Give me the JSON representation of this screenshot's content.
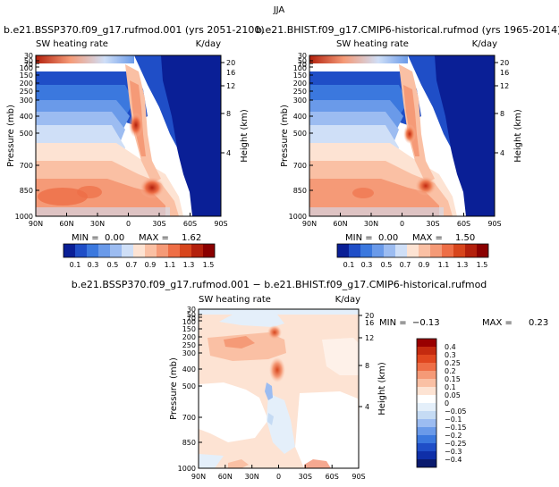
{
  "page_title": "JJA",
  "colors": {
    "lightblue": "#e4effa",
    "lightred": "#fde3d3",
    "midred": "#fac0a4",
    "orange": "#ee6e46",
    "darkorange": "#d7451c",
    "darkred": "#990000"
  },
  "chart_data": [
    {
      "type": "heatmap",
      "title": "b.e21.BSSP370.f09_g17.rufmod.001 (yrs 2051-2100)",
      "field_label": "SW heating rate",
      "units": "K/day",
      "ylabel": "Pressure (mb)",
      "ylabel_right": "Height (km)",
      "x_ticks": [
        "90N",
        "60N",
        "30N",
        "0",
        "30S",
        "60S",
        "90S"
      ],
      "y_ticks": [
        "30",
        "50",
        "70",
        "100",
        "150",
        "200",
        "250",
        "300",
        "400",
        "500",
        "700",
        "850",
        "1000"
      ],
      "height_ticks": [
        "20",
        "16",
        "12",
        "8",
        "4"
      ],
      "min_label": "MIN =",
      "min_value": "0.00",
      "max_label": "MAX =",
      "max_value": "1.62",
      "xlim": [
        90,
        -90
      ],
      "ylim": [
        1000,
        30
      ]
    },
    {
      "type": "heatmap",
      "title": "b.e21.BHIST.f09_g17.CMIP6-historical.rufmod (yrs 1965-2014)",
      "field_label": "SW heating rate",
      "units": "K/day",
      "ylabel": "Pressure (mb)",
      "ylabel_right": "Height (km)",
      "x_ticks": [
        "90N",
        "60N",
        "30N",
        "0",
        "30S",
        "60S",
        "90S"
      ],
      "y_ticks": [
        "30",
        "50",
        "70",
        "100",
        "150",
        "200",
        "250",
        "300",
        "400",
        "500",
        "700",
        "850",
        "1000"
      ],
      "height_ticks": [
        "20",
        "16",
        "12",
        "8",
        "4"
      ],
      "min_label": "MIN =",
      "min_value": "0.00",
      "max_label": "MAX =",
      "max_value": "1.50",
      "xlim": [
        90,
        -90
      ],
      "ylim": [
        1000,
        30
      ]
    },
    {
      "type": "heatmap",
      "title": "b.e21.BSSP370.f09_g17.rufmod.001 − b.e21.BHIST.f09_g17.CMIP6-historical.rufmod",
      "field_label": "SW heating rate",
      "units": "K/day",
      "ylabel": "Pressure (mb)",
      "ylabel_right": "Height (km)",
      "x_ticks": [
        "90N",
        "60N",
        "30N",
        "0",
        "30S",
        "60S",
        "90S"
      ],
      "y_ticks": [
        "30",
        "50",
        "70",
        "100",
        "150",
        "200",
        "250",
        "300",
        "400",
        "500",
        "700",
        "850",
        "1000"
      ],
      "height_ticks": [
        "20",
        "16",
        "12",
        "8",
        "4"
      ],
      "min_label": "MIN =",
      "min_value": "−0.13",
      "max_label": "MAX =",
      "max_value": "0.23",
      "xlim": [
        90,
        -90
      ],
      "ylim": [
        1000,
        30
      ]
    }
  ],
  "colorbar_main": {
    "labels": [
      "0.1",
      "0.3",
      "0.5",
      "0.7",
      "0.9",
      "1.1",
      "1.3",
      "1.5"
    ],
    "colors": [
      "#0a1f96",
      "#1f4ec7",
      "#3b78de",
      "#6a9ae9",
      "#9cbcf1",
      "#cfdff7",
      "#fde3d3",
      "#fac0a4",
      "#f59a77",
      "#ee6e46",
      "#d7451c",
      "#b3200c",
      "#8a0000"
    ]
  },
  "colorbar_diff": {
    "labels": [
      "0.4",
      "0.3",
      "0.25",
      "0.2",
      "0.15",
      "0.1",
      "0.05",
      "0",
      "−0.05",
      "−0.1",
      "−0.15",
      "−0.2",
      "−0.25",
      "−0.3",
      "−0.4"
    ],
    "colors": [
      "#990000",
      "#c42a0f",
      "#e0471f",
      "#ee6e46",
      "#f59a77",
      "#fac0a4",
      "#fde3d3",
      "#ffffff",
      "#e4effa",
      "#c5dbf4",
      "#9cbcf1",
      "#6a9ae9",
      "#3b78de",
      "#1f4ec7",
      "#0f2fa8",
      "#0a1a6e"
    ]
  }
}
